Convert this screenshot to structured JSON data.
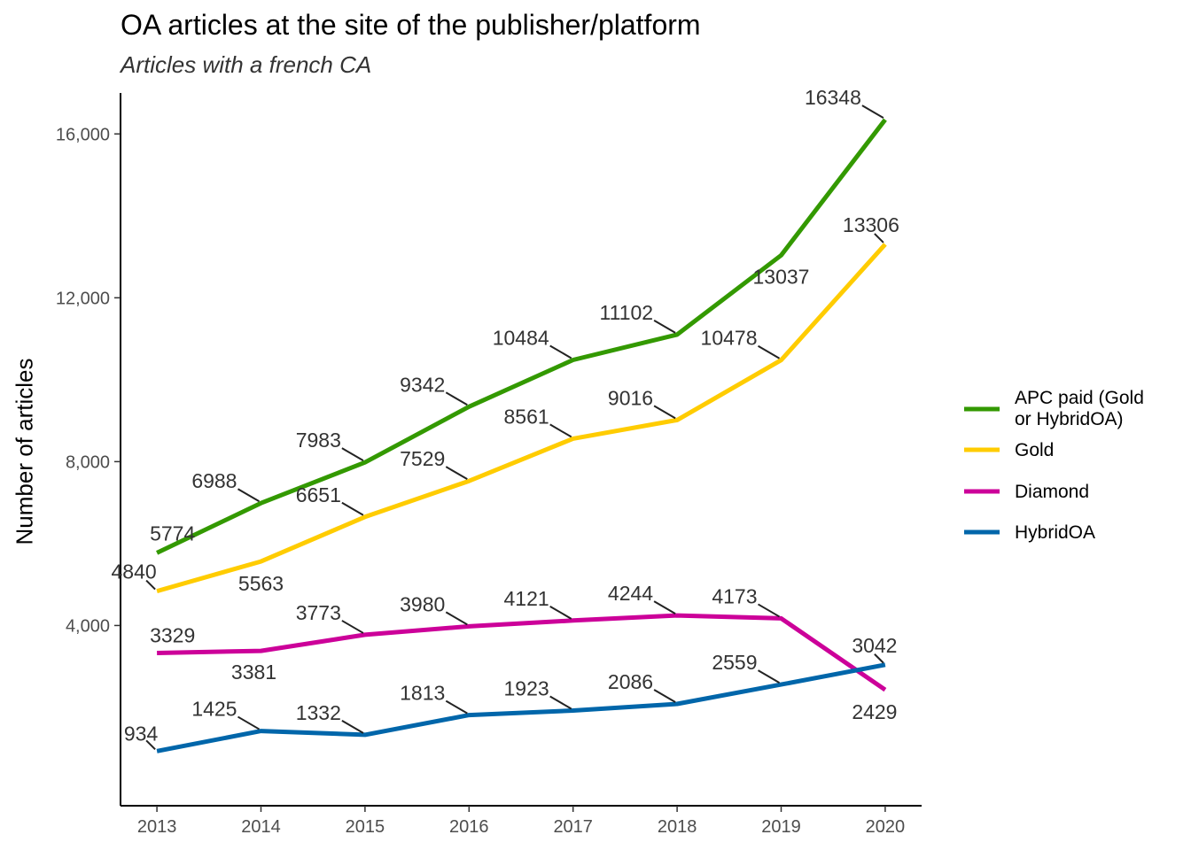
{
  "chart_data": {
    "type": "line",
    "title": "OA articles at the site of the publisher/platform",
    "subtitle": "Articles with a french CA",
    "xlabel": "",
    "ylabel": "Number of articles",
    "x": [
      2013,
      2014,
      2015,
      2016,
      2017,
      2018,
      2019,
      2020
    ],
    "xlim": [
      2012.65,
      2020.35
    ],
    "ylim": [
      -400,
      17000
    ],
    "y_ticks": [
      4000,
      8000,
      12000,
      16000
    ],
    "y_tick_labels": [
      "4,000",
      "8,000",
      "12,000",
      "16,000"
    ],
    "grid": false,
    "legend_position": "right",
    "series": [
      {
        "name": "APC paid (Gold or HybridOA)",
        "legend_lines": [
          "APC paid (Gold",
          "or HybridOA)"
        ],
        "color": "#339900",
        "values": [
          5774,
          6988,
          7983,
          9342,
          10484,
          11102,
          13037,
          16348
        ]
      },
      {
        "name": "Gold",
        "legend_lines": [
          "Gold"
        ],
        "color": "#ffcc00",
        "values": [
          4840,
          5563,
          6651,
          7529,
          8561,
          9016,
          10478,
          13306
        ]
      },
      {
        "name": "Diamond",
        "legend_lines": [
          "Diamond"
        ],
        "color": "#cc0099",
        "values": [
          3329,
          3381,
          3773,
          3980,
          4121,
          4244,
          4173,
          2429
        ]
      },
      {
        "name": "HybridOA",
        "legend_lines": [
          "HybridOA"
        ],
        "color": "#0066aa",
        "values": [
          934,
          1425,
          1332,
          1813,
          1923,
          2086,
          2559,
          3042
        ]
      }
    ]
  }
}
